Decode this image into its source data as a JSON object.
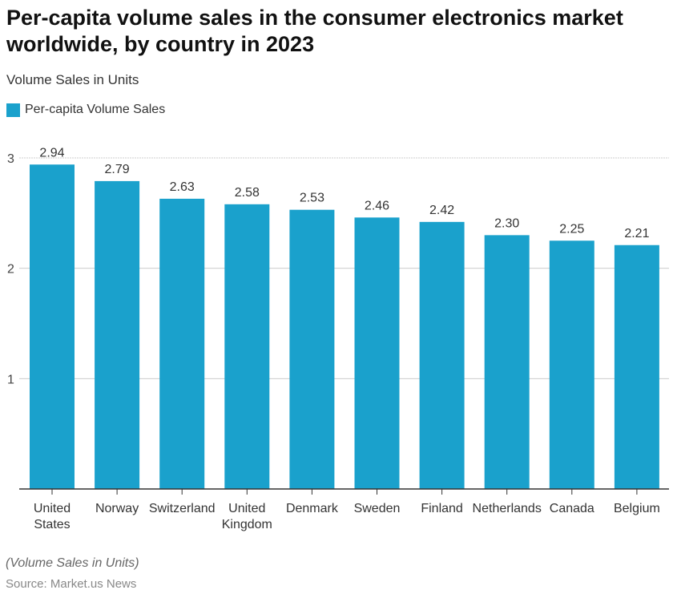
{
  "chart_data": {
    "type": "bar",
    "title": "Per-capita volume sales in the consumer electronics market worldwide, by country in 2023",
    "subtitle": "Volume Sales in Units",
    "categories": [
      "United States",
      "Norway",
      "Switzerland",
      "United Kingdom",
      "Denmark",
      "Sweden",
      "Finland",
      "Netherlands",
      "Canada",
      "Belgium"
    ],
    "series": [
      {
        "name": "Per-capita Volume Sales",
        "values": [
          2.94,
          2.79,
          2.63,
          2.58,
          2.53,
          2.46,
          2.42,
          2.3,
          2.25,
          2.21
        ],
        "labels": [
          "2.94",
          "2.79",
          "2.63",
          "2.58",
          "2.53",
          "2.46",
          "2.42",
          "2.30",
          "2.25",
          "2.21"
        ]
      }
    ],
    "ylim": [
      0,
      3
    ],
    "yticks": [
      "1",
      "2",
      "3"
    ],
    "grid": true,
    "legend_position": "top-left",
    "bar_color": "#1aa1cc",
    "footnote": "(Volume Sales in Units)",
    "source": "Source: Market.us News"
  }
}
